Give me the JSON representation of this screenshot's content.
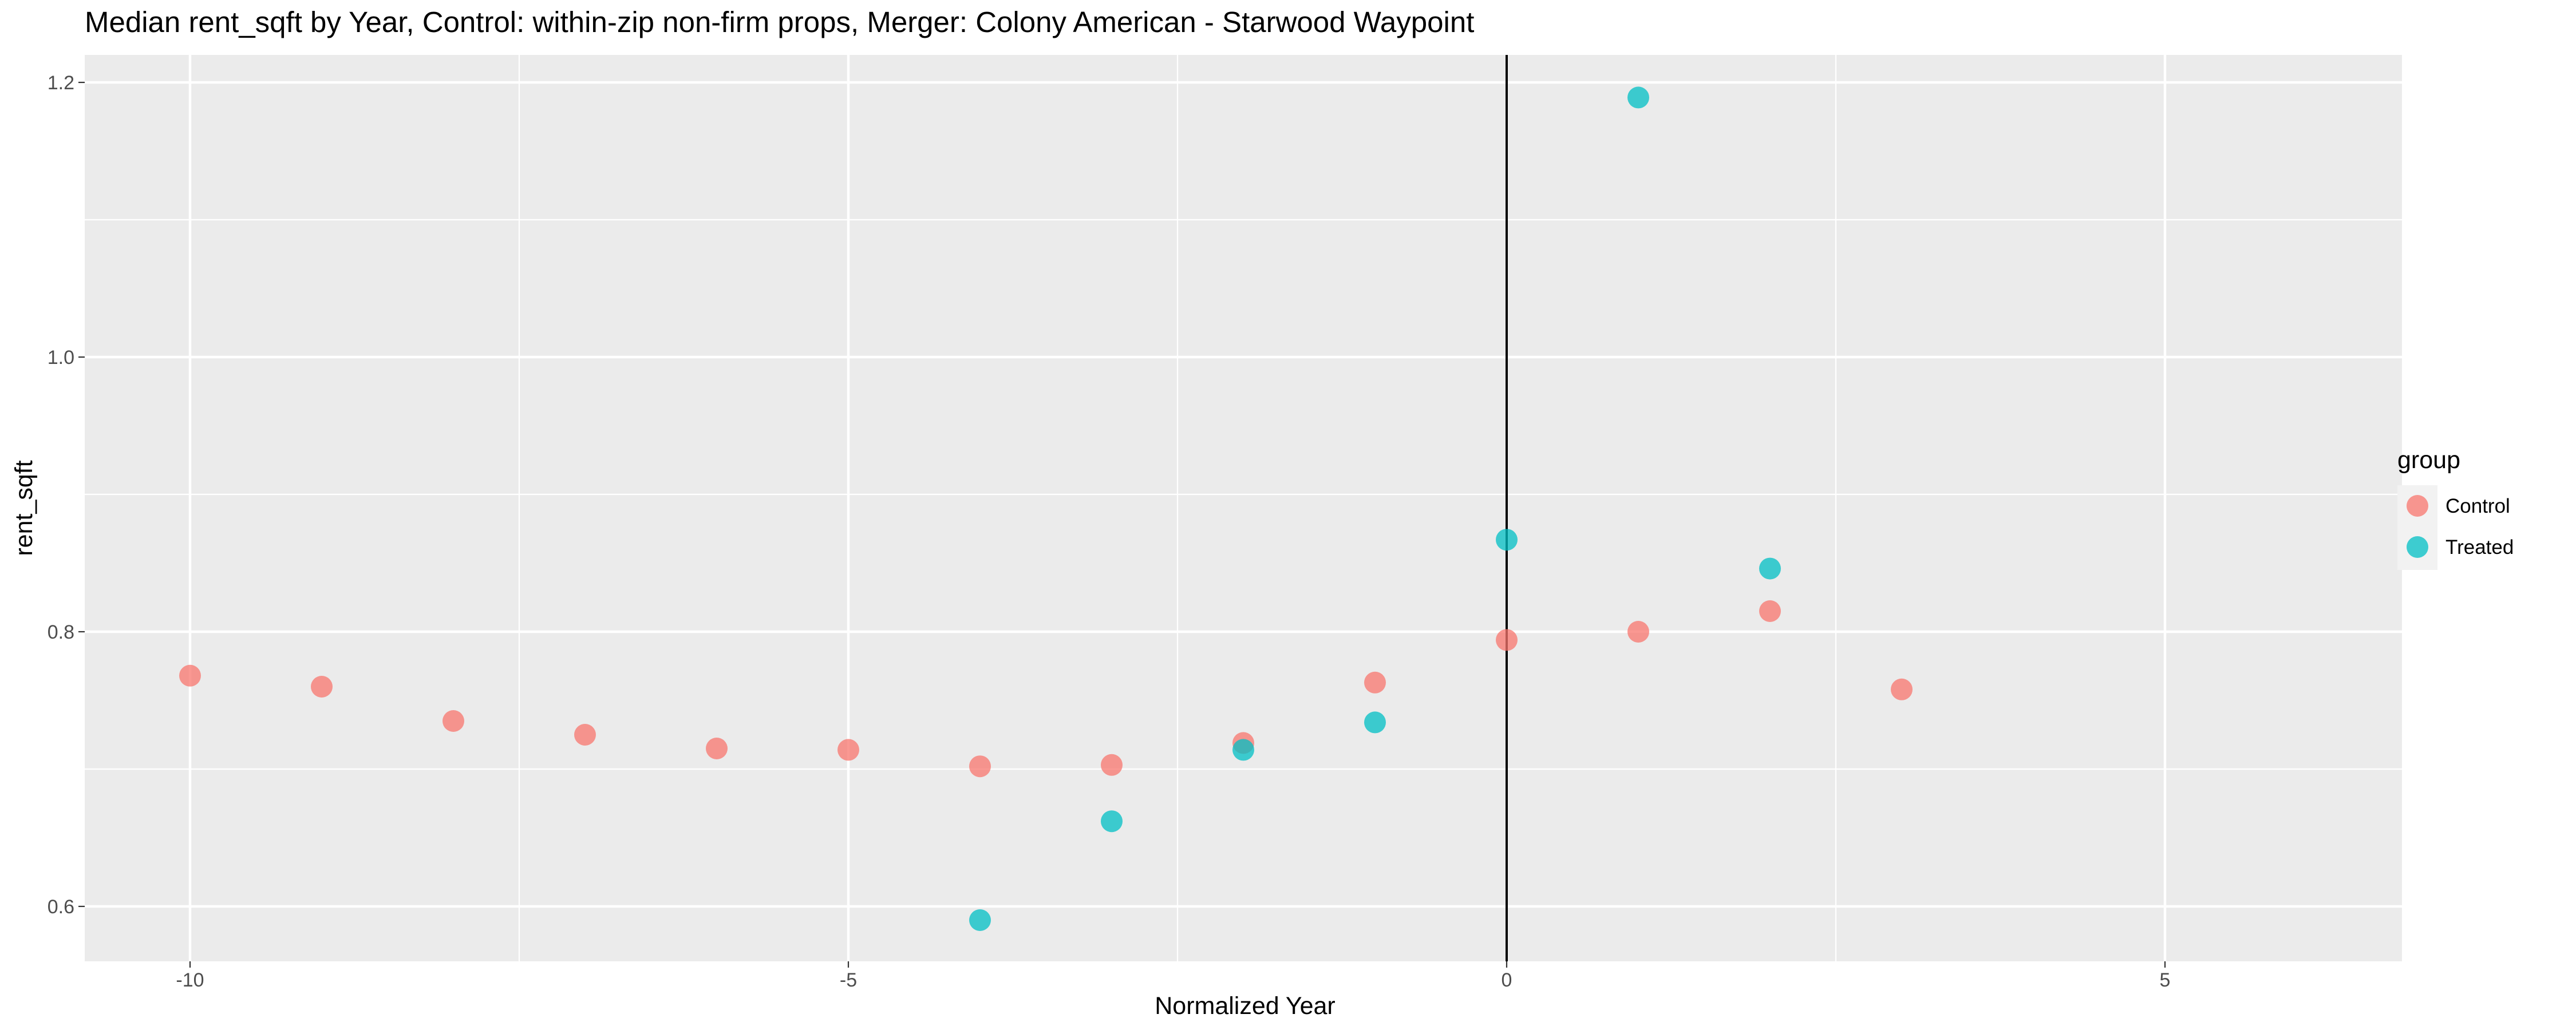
{
  "chart_data": {
    "type": "scatter",
    "title": "Median rent_sqft by Year, Control: within-zip non-firm props, Merger: Colony American - Starwood Waypoint",
    "xlabel": "Normalized Year",
    "ylabel": "rent_sqft",
    "xlim": [
      -10.8,
      6.8
    ],
    "ylim": [
      0.56,
      1.22
    ],
    "x_ticks": [
      -10,
      -5,
      0,
      5
    ],
    "x_tick_labels": [
      "-10",
      "-5",
      "0",
      "5"
    ],
    "y_ticks": [
      0.6,
      0.8,
      1.0,
      1.2
    ],
    "y_tick_labels": [
      "0.6",
      "0.8",
      "1.0",
      "1.2"
    ],
    "grid": true,
    "vline_x": 0,
    "legend_title": "group",
    "legend_position": "right",
    "series": [
      {
        "name": "Control",
        "color": "#F8766D",
        "points": [
          {
            "x": -10,
            "y": 0.768
          },
          {
            "x": -9,
            "y": 0.76
          },
          {
            "x": -8,
            "y": 0.735
          },
          {
            "x": -7,
            "y": 0.725
          },
          {
            "x": -6,
            "y": 0.715
          },
          {
            "x": -5,
            "y": 0.714
          },
          {
            "x": -4,
            "y": 0.702
          },
          {
            "x": -3,
            "y": 0.703
          },
          {
            "x": -2,
            "y": 0.719
          },
          {
            "x": -1,
            "y": 0.763
          },
          {
            "x": 0,
            "y": 0.794
          },
          {
            "x": 1,
            "y": 0.8
          },
          {
            "x": 2,
            "y": 0.815
          },
          {
            "x": 3,
            "y": 0.758
          }
        ]
      },
      {
        "name": "Treated",
        "color": "#00BFC4",
        "points": [
          {
            "x": -4,
            "y": 0.59
          },
          {
            "x": -3,
            "y": 0.662
          },
          {
            "x": -2,
            "y": 0.714
          },
          {
            "x": -1,
            "y": 0.734
          },
          {
            "x": 0,
            "y": 0.867
          },
          {
            "x": 1,
            "y": 1.189
          },
          {
            "x": 2,
            "y": 0.846
          }
        ]
      }
    ]
  }
}
